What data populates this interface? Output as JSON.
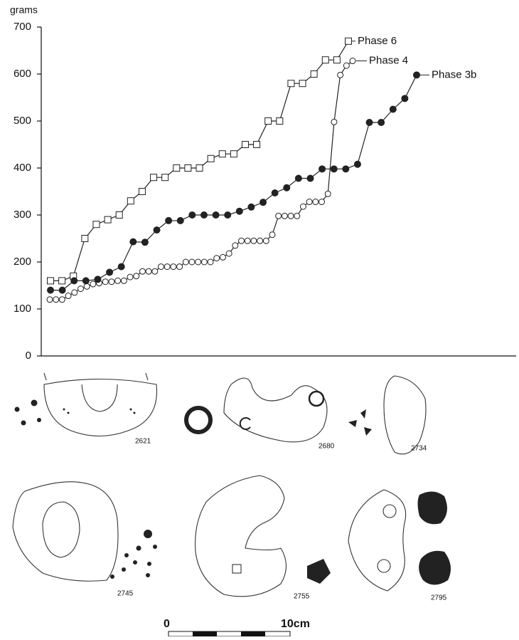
{
  "chart_data": {
    "type": "line",
    "y_label": "grams",
    "ylim": [
      0,
      700
    ],
    "yticks": [
      0,
      100,
      200,
      300,
      400,
      500,
      600,
      700
    ],
    "series": [
      {
        "name": "Phase 6",
        "color": "#222222",
        "marker": "square",
        "filled": false,
        "values": [
          160,
          160,
          170,
          250,
          280,
          290,
          300,
          330,
          350,
          380,
          380,
          400,
          400,
          400,
          420,
          430,
          430,
          450,
          450,
          500,
          500,
          580,
          580,
          600,
          630,
          630,
          670
        ]
      },
      {
        "name": "Phase 4",
        "color": "#222222",
        "marker": "circle",
        "filled": false,
        "values": [
          120,
          120,
          120,
          128,
          135,
          143,
          148,
          153,
          155,
          158,
          158,
          160,
          160,
          168,
          170,
          180,
          180,
          180,
          190,
          190,
          190,
          190,
          200,
          200,
          200,
          200,
          200,
          208,
          210,
          218,
          235,
          245,
          245,
          245,
          245,
          245,
          258,
          298,
          298,
          298,
          298,
          318,
          328,
          328,
          328,
          345,
          498,
          598,
          618,
          628
        ]
      },
      {
        "name": "Phase 3b",
        "color": "#222222",
        "marker": "circle",
        "filled": true,
        "values": [
          140,
          140,
          160,
          160,
          163,
          178,
          190,
          243,
          242,
          268,
          288,
          288,
          300,
          300,
          300,
          300,
          308,
          317,
          327,
          347,
          358,
          378,
          378,
          398,
          398,
          398,
          408,
          497,
          497,
          525,
          548,
          598
        ]
      }
    ]
  },
  "drawings": {
    "labels": [
      "2621",
      "2680",
      "2734",
      "2745",
      "2755",
      "2795"
    ]
  },
  "scale_bar": {
    "start": "0",
    "end": "10cm"
  }
}
